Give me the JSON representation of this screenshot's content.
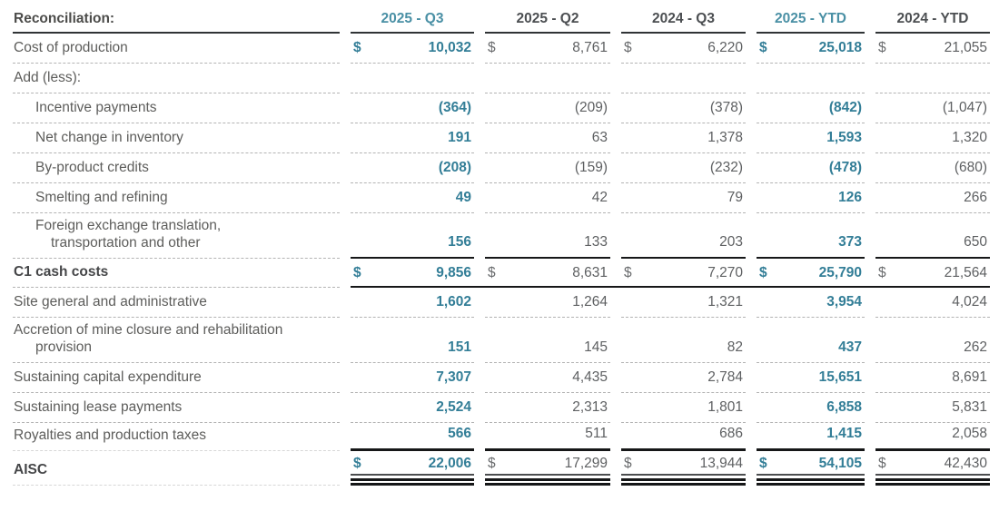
{
  "colors": {
    "accent_teal_values": "#337e97",
    "accent_teal_headers": "#4a90a5",
    "header_dark": "#4c4f52",
    "body_gray": "#5d5d5b",
    "rule_black": "#161718",
    "dashed_separator": "#b3b3b3"
  },
  "table": {
    "currency_symbol": "$",
    "header": {
      "label": "Reconciliation:",
      "columns": [
        {
          "label": "2025 - Q3",
          "highlight": true
        },
        {
          "label": "2025 - Q2",
          "highlight": false
        },
        {
          "label": "2024 - Q3",
          "highlight": false
        },
        {
          "label": "2025 - YTD",
          "highlight": true
        },
        {
          "label": "2024 - YTD",
          "highlight": false
        }
      ]
    },
    "rows": [
      {
        "label": "Cost of production",
        "indent": 0,
        "dollar": true,
        "bold": false,
        "style": "plain",
        "values": [
          "10,032",
          "8,761",
          "6,220",
          "25,018",
          "21,055"
        ]
      },
      {
        "label": "Add (less):",
        "indent": 0,
        "bold": false,
        "style": "plain",
        "values": null
      },
      {
        "label": "Incentive payments",
        "indent": 1,
        "bold": false,
        "style": "plain",
        "values": [
          "(364)",
          "(209)",
          "(378)",
          "(842)",
          "(1,047)"
        ]
      },
      {
        "label": "Net change in inventory",
        "indent": 1,
        "bold": false,
        "style": "plain",
        "values": [
          "191",
          "63",
          "1,378",
          "1,593",
          "1,320"
        ]
      },
      {
        "label": "By-product credits",
        "indent": 1,
        "bold": false,
        "style": "plain",
        "values": [
          "(208)",
          "(159)",
          "(232)",
          "(478)",
          "(680)"
        ]
      },
      {
        "label": "Smelting and refining",
        "indent": 1,
        "bold": false,
        "style": "plain",
        "values": [
          "49",
          "42",
          "79",
          "126",
          "266"
        ]
      },
      {
        "label": "Foreign exchange translation,",
        "label2": "transportation and other",
        "indent": 1,
        "indent2": 2,
        "bold": false,
        "style": "pretotal",
        "values": [
          "156",
          "133",
          "203",
          "373",
          "650"
        ]
      },
      {
        "label": "C1 cash costs",
        "indent": 0,
        "dollar": true,
        "bold": true,
        "style": "subtotal",
        "values": [
          "9,856",
          "8,631",
          "7,270",
          "25,790",
          "21,564"
        ]
      },
      {
        "label": "Site general and administrative",
        "indent": 0,
        "bold": false,
        "style": "plain",
        "values": [
          "1,602",
          "1,264",
          "1,321",
          "3,954",
          "4,024"
        ]
      },
      {
        "label": "Accretion of mine closure and rehabilitation",
        "label2": "provision",
        "indent": 0,
        "indent2": 1,
        "bold": false,
        "style": "plain",
        "values": [
          "151",
          "145",
          "82",
          "437",
          "262"
        ]
      },
      {
        "label": "Sustaining capital expenditure",
        "indent": 0,
        "bold": false,
        "style": "plain",
        "values": [
          "7,307",
          "4,435",
          "2,784",
          "15,651",
          "8,691"
        ]
      },
      {
        "label": "Sustaining lease payments",
        "indent": 0,
        "bold": false,
        "style": "plain",
        "values": [
          "2,524",
          "2,313",
          "1,801",
          "6,858",
          "5,831"
        ]
      },
      {
        "label": "Royalties and production taxes",
        "indent": 0,
        "bold": false,
        "style": "pretotal_thick",
        "values": [
          "566",
          "511",
          "686",
          "1,415",
          "2,058"
        ]
      },
      {
        "label": "AISC",
        "indent": 0,
        "dollar": true,
        "bold": true,
        "style": "grandtotal",
        "values": [
          "22,006",
          "17,299",
          "13,944",
          "54,105",
          "42,430"
        ]
      }
    ]
  }
}
